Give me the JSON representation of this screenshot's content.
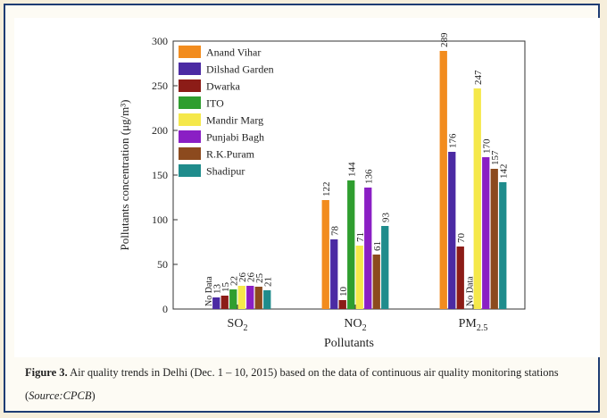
{
  "chart_data": {
    "type": "bar",
    "categories": [
      "SO2",
      "NO2",
      "PM2.5"
    ],
    "xlabel": "Pollutants",
    "ylabel": "Pollutants concentration (μg/m³)",
    "ylim": [
      0,
      300
    ],
    "yticks": [
      0,
      50,
      100,
      150,
      200,
      250,
      300
    ],
    "legend_position": "top-left",
    "no_data_label": "No Data",
    "series": [
      {
        "name": "Anand Vihar",
        "color": "#f28c1e",
        "values": [
          null,
          122,
          289
        ],
        "labels": [
          "No Data",
          "122",
          "289"
        ]
      },
      {
        "name": "Dilshad Garden",
        "color": "#4b2aa3",
        "values": [
          13,
          78,
          176
        ],
        "labels": [
          "13",
          "78",
          "176"
        ]
      },
      {
        "name": "Dwarka",
        "color": "#8c1c17",
        "values": [
          15,
          10,
          70
        ],
        "labels": [
          "15",
          "10",
          "70"
        ]
      },
      {
        "name": "ITO",
        "color": "#2f9e2f",
        "values": [
          22,
          144,
          null
        ],
        "labels": [
          "22",
          "144",
          "No Data"
        ]
      },
      {
        "name": "Mandir Marg",
        "color": "#f5e84a",
        "values": [
          26,
          71,
          247
        ],
        "labels": [
          "26",
          "71",
          "247"
        ]
      },
      {
        "name": "Punjabi Bagh",
        "color": "#8a1fc4",
        "values": [
          26,
          136,
          170
        ],
        "labels": [
          "26",
          "136",
          "170"
        ]
      },
      {
        "name": "R.K.Puram",
        "color": "#8c4a1e",
        "values": [
          25,
          61,
          157
        ],
        "labels": [
          "25",
          "61",
          "157"
        ]
      },
      {
        "name": "Shadipur",
        "color": "#1f8c8c",
        "values": [
          21,
          93,
          142
        ],
        "labels": [
          "21",
          "93",
          "142"
        ]
      }
    ]
  },
  "caption": {
    "lead": "Figure 3.",
    "text": " Air quality trends in Delhi (Dec. 1 – 10, 2015) based on the data of continuous air quality monitoring stations (",
    "source": "Source:CPCB",
    "close": ")"
  }
}
